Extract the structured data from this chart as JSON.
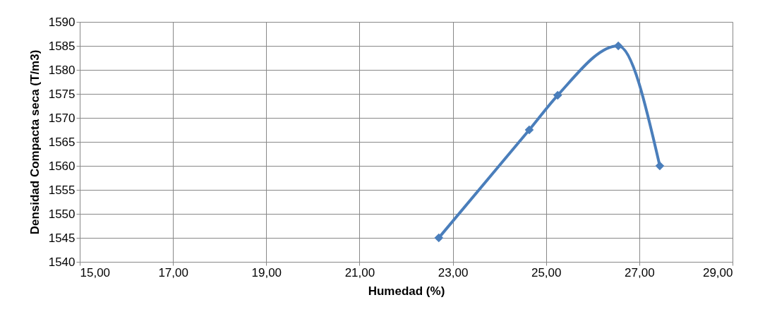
{
  "chart_data": {
    "type": "line",
    "xlabel": "Humedad (%)",
    "ylabel": "Densidad Compacta seca (T/m3)",
    "x": [
      22.7,
      24.64,
      25.25,
      26.55,
      27.44
    ],
    "series": [
      {
        "color": "#4a7ebb",
        "values": [
          1545,
          1567.5,
          1574.7,
          1585,
          1560
        ]
      }
    ],
    "xlim": [
      15,
      29
    ],
    "xticks": [
      {
        "value": 15,
        "label": "15,00"
      },
      {
        "value": 17,
        "label": "17,00"
      },
      {
        "value": 19,
        "label": "19,00"
      },
      {
        "value": 21,
        "label": "21,00"
      },
      {
        "value": 23,
        "label": "23,00"
      },
      {
        "value": 25,
        "label": "25,00"
      },
      {
        "value": 27,
        "label": "27,00"
      },
      {
        "value": 29,
        "label": "29,00"
      }
    ],
    "ylim": [
      1540,
      1590
    ],
    "yticks": [
      1540,
      1545,
      1550,
      1555,
      1560,
      1565,
      1570,
      1575,
      1580,
      1585,
      1590
    ],
    "grid": true,
    "marker": "diamond",
    "line_style": "solid"
  }
}
